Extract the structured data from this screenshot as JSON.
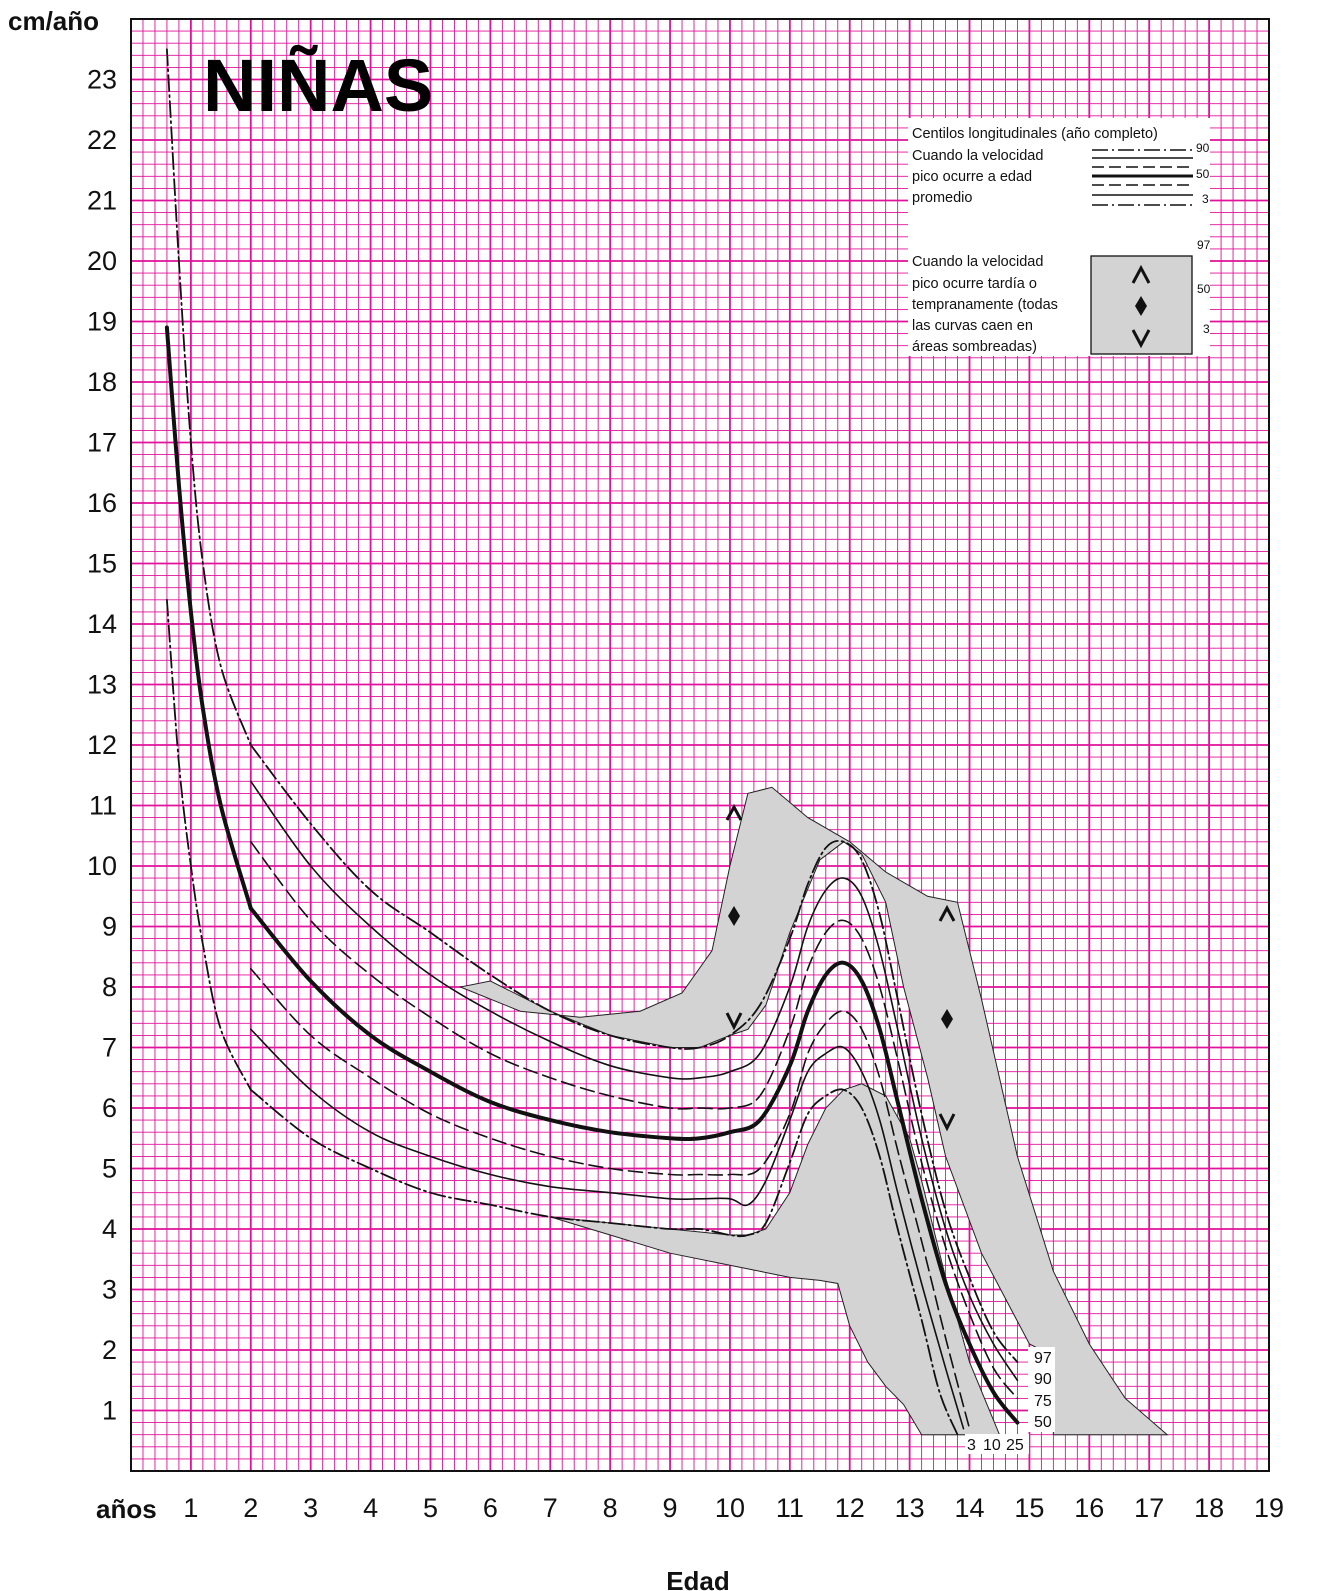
{
  "chart_data": {
    "type": "line",
    "title": "NIÑAS",
    "ylabel": "cm/año",
    "xlabel": "Edad",
    "x_unit_label": "años",
    "xlim": [
      0,
      19
    ],
    "ylim": [
      0,
      24
    ],
    "x_ticks": [
      "1",
      "2",
      "3",
      "4",
      "5",
      "6",
      "7",
      "8",
      "9",
      "10",
      "11",
      "12",
      "13",
      "14",
      "15",
      "16",
      "17",
      "18",
      "19"
    ],
    "y_ticks": [
      "1",
      "2",
      "3",
      "4",
      "5",
      "6",
      "7",
      "8",
      "9",
      "10",
      "11",
      "12",
      "13",
      "14",
      "15",
      "16",
      "17",
      "18",
      "19",
      "20",
      "21",
      "22",
      "23"
    ],
    "grid": true,
    "grid_color": "#e0119a",
    "shade_color": "#d3d3d3",
    "legend": {
      "title": "Centilos longitudinales (año completo)",
      "average_lines": [
        "Cuando la velocidad",
        "pico ocurre a edad",
        "promedio"
      ],
      "average_labels": [
        "90",
        "50",
        "3"
      ],
      "early_late_lines": [
        "Cuando la velocidad",
        "pico ocurre tardía o",
        "tempranamente (todas",
        "las curvas caen en",
        "áreas sombreadas)"
      ],
      "early_late_labels": [
        "97",
        "50",
        "3"
      ]
    },
    "end_labels_right": [
      "97",
      "90",
      "75",
      "50"
    ],
    "end_labels_bottom": [
      "3",
      "10",
      "25"
    ],
    "infancy_series": [
      {
        "name": "97",
        "style": "dashdot",
        "x": [
          0.6,
          0.8,
          1.0,
          1.2,
          1.5,
          2.0
        ],
        "y": [
          23.5,
          20.0,
          17.0,
          15.0,
          13.3,
          12.0
        ]
      },
      {
        "name": "50",
        "style": "thick",
        "x": [
          0.6,
          0.8,
          1.0,
          1.2,
          1.5,
          2.0
        ],
        "y": [
          18.9,
          16.3,
          14.2,
          12.6,
          11.0,
          9.3
        ]
      },
      {
        "name": "3",
        "style": "dashdot",
        "x": [
          0.6,
          0.8,
          1.0,
          1.2,
          1.5,
          2.0
        ],
        "y": [
          14.4,
          11.7,
          10.0,
          8.7,
          7.3,
          6.3
        ]
      }
    ],
    "series": [
      {
        "name": "97",
        "style": "dashdot",
        "x": [
          2.0,
          3.0,
          4.0,
          5.0,
          6.0,
          7.0,
          8.0,
          9.0,
          9.5,
          10.0,
          10.5,
          11.0,
          11.3,
          11.6,
          11.9,
          12.2,
          12.5,
          12.8,
          13.2,
          13.6,
          14.0,
          14.4,
          14.8
        ],
        "y": [
          12.0,
          10.7,
          9.6,
          8.9,
          8.2,
          7.6,
          7.2,
          7.0,
          7.0,
          7.2,
          7.7,
          8.8,
          9.7,
          10.3,
          10.4,
          10.1,
          9.2,
          7.8,
          5.9,
          4.3,
          3.2,
          2.3,
          1.8
        ]
      },
      {
        "name": "90",
        "style": "solid",
        "x": [
          2.0,
          3.0,
          4.0,
          5.0,
          6.0,
          7.0,
          8.0,
          9.0,
          9.5,
          10.0,
          10.5,
          11.0,
          11.3,
          11.6,
          11.9,
          12.2,
          12.5,
          12.8,
          13.2,
          13.6,
          14.0,
          14.4,
          14.8
        ],
        "y": [
          11.4,
          10.0,
          9.0,
          8.2,
          7.6,
          7.1,
          6.7,
          6.5,
          6.5,
          6.6,
          6.9,
          8.0,
          9.0,
          9.6,
          9.8,
          9.5,
          8.6,
          7.3,
          5.5,
          4.0,
          2.9,
          2.1,
          1.5
        ]
      },
      {
        "name": "75",
        "style": "dashed",
        "x": [
          2.0,
          3.0,
          4.0,
          5.0,
          6.0,
          7.0,
          8.0,
          9.0,
          9.5,
          10.0,
          10.5,
          11.0,
          11.3,
          11.6,
          11.9,
          12.2,
          12.5,
          12.8,
          13.2,
          13.6,
          14.0,
          14.4,
          14.8
        ],
        "y": [
          10.4,
          9.1,
          8.2,
          7.5,
          6.9,
          6.5,
          6.2,
          6.0,
          6.0,
          6.0,
          6.2,
          7.3,
          8.3,
          8.9,
          9.1,
          8.8,
          8.0,
          6.8,
          5.1,
          3.7,
          2.6,
          1.7,
          1.2
        ]
      },
      {
        "name": "50",
        "style": "thick",
        "x": [
          2.0,
          3.0,
          4.0,
          5.0,
          6.0,
          7.0,
          8.0,
          9.0,
          9.5,
          10.0,
          10.5,
          11.0,
          11.3,
          11.6,
          11.9,
          12.2,
          12.5,
          12.8,
          13.2,
          13.6,
          14.0,
          14.4,
          14.8
        ],
        "y": [
          9.3,
          8.1,
          7.2,
          6.6,
          6.1,
          5.8,
          5.6,
          5.5,
          5.5,
          5.6,
          5.8,
          6.7,
          7.6,
          8.2,
          8.4,
          8.1,
          7.3,
          6.1,
          4.5,
          3.1,
          2.1,
          1.3,
          0.8
        ]
      },
      {
        "name": "25",
        "style": "dashed",
        "x": [
          2.0,
          3.0,
          4.0,
          5.0,
          6.0,
          7.0,
          8.0,
          9.0,
          9.5,
          10.0,
          10.5,
          11.0,
          11.3,
          11.6,
          11.9,
          12.2,
          12.5,
          12.8,
          13.2,
          13.6,
          14.0
        ],
        "y": [
          8.3,
          7.2,
          6.5,
          5.9,
          5.5,
          5.2,
          5.0,
          4.9,
          4.9,
          4.9,
          5.0,
          5.9,
          6.9,
          7.4,
          7.6,
          7.3,
          6.5,
          5.3,
          3.8,
          2.2,
          0.7
        ]
      },
      {
        "name": "10",
        "style": "solid",
        "x": [
          2.0,
          3.0,
          4.0,
          5.0,
          6.0,
          7.0,
          8.0,
          9.0,
          9.5,
          10.0,
          10.3,
          10.6,
          11.0,
          11.3,
          11.6,
          11.9,
          12.2,
          12.5,
          12.8,
          13.2,
          13.6,
          13.9
        ],
        "y": [
          7.3,
          6.3,
          5.6,
          5.2,
          4.9,
          4.7,
          4.6,
          4.5,
          4.5,
          4.5,
          4.4,
          4.8,
          5.8,
          6.6,
          6.9,
          7.0,
          6.6,
          5.8,
          4.6,
          3.1,
          1.7,
          0.7
        ]
      },
      {
        "name": "3",
        "style": "dashdot",
        "x": [
          2.0,
          3.0,
          4.0,
          5.0,
          6.0,
          7.0,
          8.0,
          9.0,
          9.5,
          10.0,
          10.3,
          10.6,
          11.0,
          11.3,
          11.6,
          11.9,
          12.2,
          12.5,
          12.8,
          13.2,
          13.5,
          13.8
        ],
        "y": [
          6.3,
          5.5,
          5.0,
          4.6,
          4.4,
          4.2,
          4.1,
          4.0,
          4.0,
          3.9,
          3.9,
          4.1,
          5.1,
          5.9,
          6.2,
          6.3,
          6.0,
          5.2,
          4.0,
          2.5,
          1.3,
          0.6
        ]
      }
    ],
    "shaded_regions": [
      {
        "name": "early-late-upper",
        "x": [
          5.5,
          6.5,
          7.5,
          8.5,
          9.2,
          9.7,
          10.0,
          10.3,
          10.7,
          11.3,
          12.0,
          12.6,
          13.3,
          13.8,
          14.2,
          14.8,
          15.4,
          16.0,
          16.6,
          17.3,
          15.4,
          15.4,
          15.0,
          14.2,
          13.6,
          13.3,
          12.9,
          12.6,
          12.2,
          11.9,
          11.5,
          11.0,
          10.6,
          10.3,
          10.0,
          9.5,
          9.0,
          8.0,
          7.0,
          6.0
        ],
        "y": [
          8.0,
          7.6,
          7.5,
          7.6,
          7.9,
          8.6,
          10.0,
          11.2,
          11.3,
          10.8,
          10.4,
          9.9,
          9.5,
          9.4,
          7.8,
          5.2,
          3.3,
          2.1,
          1.2,
          0.6,
          0.6,
          1.9,
          2.1,
          3.6,
          5.2,
          6.5,
          8.0,
          9.4,
          10.2,
          10.4,
          10.1,
          8.9,
          7.7,
          7.3,
          7.2,
          7.0,
          7.0,
          7.2,
          7.6,
          8.1
        ]
      },
      {
        "name": "early-late-lower",
        "x": [
          7.0,
          8.0,
          9.0,
          10.0,
          10.5,
          11.0,
          11.5,
          11.8,
          12.0,
          12.3,
          12.6,
          12.9,
          13.2,
          13.6,
          14.0,
          14.5,
          14.0,
          13.6,
          13.2,
          13.0,
          12.6,
          12.2,
          11.9,
          11.6,
          11.3,
          11.0,
          10.6,
          10.3,
          10.0,
          9.0,
          8.0
        ],
        "y": [
          4.2,
          3.9,
          3.6,
          3.4,
          3.3,
          3.2,
          3.15,
          3.1,
          2.4,
          1.8,
          1.4,
          1.1,
          0.6,
          0.6,
          0.6,
          0.6,
          1.8,
          3.2,
          4.8,
          5.5,
          6.2,
          6.4,
          6.3,
          6.0,
          5.4,
          4.6,
          4.0,
          3.9,
          3.9,
          4.0,
          4.1
        ]
      }
    ]
  }
}
